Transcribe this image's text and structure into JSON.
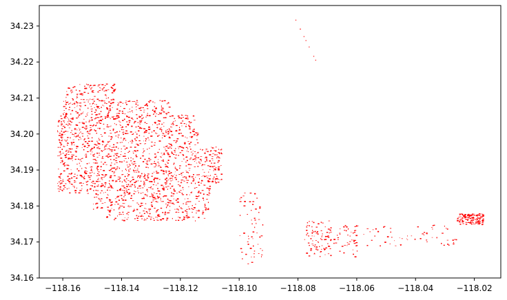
{
  "chart_data": {
    "type": "scatter",
    "title": "",
    "xlabel": "",
    "ylabel": "",
    "xlim": [
      -118.168,
      -118.011
    ],
    "ylim": [
      34.16,
      34.2357
    ],
    "x_ticks": [
      {
        "value": -118.16,
        "label": "−118.16"
      },
      {
        "value": -118.14,
        "label": "−118.14"
      },
      {
        "value": -118.12,
        "label": "−118.12"
      },
      {
        "value": -118.1,
        "label": "−118.10"
      },
      {
        "value": -118.08,
        "label": "−118.08"
      },
      {
        "value": -118.06,
        "label": "−118.06"
      },
      {
        "value": -118.04,
        "label": "−118.04"
      },
      {
        "value": -118.02,
        "label": "−118.02"
      }
    ],
    "y_ticks": [
      {
        "value": 34.16,
        "label": "34.16"
      },
      {
        "value": 34.17,
        "label": "34.17"
      },
      {
        "value": 34.18,
        "label": "34.18"
      },
      {
        "value": 34.19,
        "label": "34.19"
      },
      {
        "value": 34.2,
        "label": "34.20"
      },
      {
        "value": 34.21,
        "label": "34.21"
      },
      {
        "value": 34.22,
        "label": "34.22"
      },
      {
        "value": 34.23,
        "label": "34.23"
      }
    ],
    "grid": false,
    "legend": "none",
    "mark_color": "#ff0000",
    "regions": [
      {
        "name": "main-cluster",
        "lon": [
          -118.162,
          -118.106
        ],
        "lat": [
          34.176,
          34.214
        ],
        "density": "dense"
      },
      {
        "name": "central-south",
        "lon": [
          -118.1,
          -118.092
        ],
        "lat": [
          34.164,
          34.184
        ],
        "density": "sparse"
      },
      {
        "name": "northeast-trace",
        "lon": [
          -118.081,
          -118.074
        ],
        "lat": [
          34.211,
          34.232
        ],
        "density": "very-sparse"
      },
      {
        "name": "east-strip-1",
        "lon": [
          -118.078,
          -118.06
        ],
        "lat": [
          34.166,
          34.176
        ],
        "density": "medium"
      },
      {
        "name": "east-strip-2",
        "lon": [
          -118.058,
          -118.026
        ],
        "lat": [
          34.169,
          34.175
        ],
        "density": "sparse"
      },
      {
        "name": "east-end",
        "lon": [
          -118.026,
          -118.017
        ],
        "lat": [
          34.175,
          34.178
        ],
        "density": "medium"
      }
    ]
  }
}
